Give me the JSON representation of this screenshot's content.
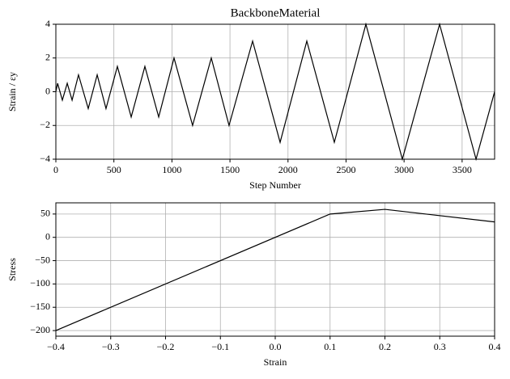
{
  "chart_data": [
    {
      "type": "line",
      "title": "BackboneMaterial",
      "xlabel": "Step Number",
      "ylabel": "Strain / εy",
      "x": [
        0,
        15,
        56,
        98,
        140,
        195,
        279,
        356,
        432,
        530,
        649,
        767,
        886,
        1018,
        1178,
        1339,
        1492,
        1695,
        1932,
        2162,
        2399,
        2671,
        2985,
        3306,
        3620,
        3780
      ],
      "series": [
        {
          "color": "#000000",
          "values": [
            0,
            0.5,
            -0.5,
            0.5,
            -0.5,
            1,
            -1,
            1,
            -1,
            1.5,
            -1.5,
            1.5,
            -1.5,
            2,
            -2,
            2,
            -2,
            3,
            -3,
            3,
            -3,
            4,
            -4,
            4,
            -4,
            0
          ]
        }
      ],
      "xlim": [
        0,
        3780
      ],
      "ylim": [
        -4,
        4
      ],
      "xticks": [
        0,
        500,
        1000,
        1500,
        2000,
        2500,
        3000,
        3500
      ],
      "yticks": [
        {
          "value": -4,
          "label": "−4"
        },
        {
          "value": -2,
          "label": "−2"
        },
        0,
        2,
        4
      ],
      "grid": true
    },
    {
      "type": "line",
      "xlabel": "Strain",
      "ylabel": "Stress",
      "x": [
        -0.4,
        0.1,
        0.2,
        0.4
      ],
      "series": [
        {
          "color": "#000000",
          "values": [
            -200,
            50,
            60,
            33
          ]
        }
      ],
      "xlim": [
        -0.4,
        0.4
      ],
      "ylim": [
        -212,
        74
      ],
      "xticks": [
        {
          "value": -0.4,
          "label": "−0.4"
        },
        {
          "value": -0.3,
          "label": "−0.3"
        },
        {
          "value": -0.2,
          "label": "−0.2"
        },
        {
          "value": -0.1,
          "label": "−0.1"
        },
        {
          "value": 0,
          "label": "0.0"
        },
        0.1,
        0.2,
        0.3,
        0.4
      ],
      "yticks": [
        {
          "value": -200,
          "label": "−200"
        },
        {
          "value": -150,
          "label": "−150"
        },
        {
          "value": -100,
          "label": "−100"
        },
        {
          "value": -50,
          "label": "−50"
        },
        0,
        50
      ],
      "grid": true
    }
  ]
}
